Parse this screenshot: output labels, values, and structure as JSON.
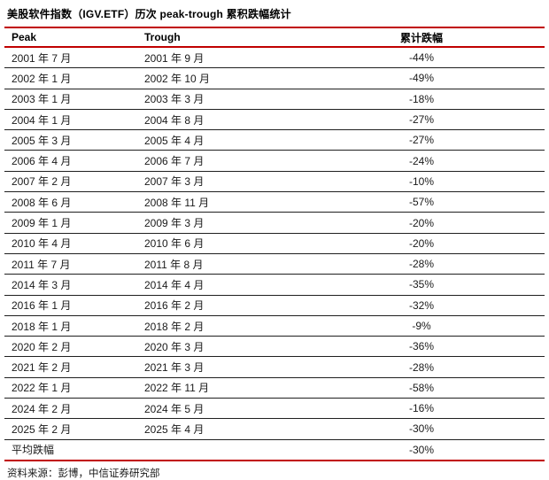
{
  "page": {
    "title": "美股软件指数（IGV.ETF）历次 peak-trough 累积跌幅统计",
    "source_note": "资料来源：彭博，中信证券研究部"
  },
  "colors": {
    "accent_red": "#c00000",
    "text": "#1a1a1a",
    "row_divider": "#1f1f1f",
    "background": "#ffffff"
  },
  "chart_data": {
    "type": "table",
    "title": "美股软件指数（IGV.ETF）历次 peak-trough 累积跌幅统计",
    "columns": [
      "Peak",
      "Trough",
      "累计跌幅"
    ],
    "rows": [
      [
        "2001 年 7 月",
        "2001 年 9 月",
        "-44%"
      ],
      [
        "2002 年 1 月",
        "2002 年 10 月",
        "-49%"
      ],
      [
        "2003 年 1 月",
        "2003 年 3 月",
        "-18%"
      ],
      [
        "2004 年 1 月",
        "2004 年 8 月",
        "-27%"
      ],
      [
        "2005 年 3 月",
        "2005 年 4 月",
        "-27%"
      ],
      [
        "2006 年 4 月",
        "2006 年 7 月",
        "-24%"
      ],
      [
        "2007 年 2 月",
        "2007 年 3 月",
        "-10%"
      ],
      [
        "2008 年 6 月",
        "2008 年 11 月",
        "-57%"
      ],
      [
        "2009 年 1 月",
        "2009 年 3 月",
        "-20%"
      ],
      [
        "2010 年 4 月",
        "2010 年 6 月",
        "-20%"
      ],
      [
        "2011 年 7 月",
        "2011 年 8 月",
        "-28%"
      ],
      [
        "2014 年 3 月",
        "2014 年 4 月",
        "-35%"
      ],
      [
        "2016 年 1 月",
        "2016 年 2 月",
        "-32%"
      ],
      [
        "2018 年 1 月",
        "2018 年 2 月",
        "-9%"
      ],
      [
        "2020 年 2 月",
        "2020 年 3 月",
        "-36%"
      ],
      [
        "2021 年 2 月",
        "2021 年 3 月",
        "-28%"
      ],
      [
        "2022 年 1 月",
        "2022 年 11 月",
        "-58%"
      ],
      [
        "2024 年 2 月",
        "2024 年 5 月",
        "-16%"
      ],
      [
        "2025 年 2 月",
        "2025 年 4 月",
        "-30%"
      ]
    ],
    "summary_row": [
      "平均跌幅",
      "",
      "-30%"
    ],
    "drawdowns_pct": [
      -44,
      -49,
      -18,
      -27,
      -27,
      -24,
      -10,
      -57,
      -20,
      -20,
      -28,
      -35,
      -32,
      -9,
      -36,
      -28,
      -58,
      -16,
      -30
    ],
    "average_drawdown_pct": -30,
    "source": "资料来源：彭博，中信证券研究部",
    "layout_hints": {
      "header_rule_color": "#c00000",
      "top_rule_color": "#c00000",
      "bottom_rule_color": "#c00000",
      "column_alignment": [
        "left",
        "left",
        "center"
      ]
    }
  }
}
